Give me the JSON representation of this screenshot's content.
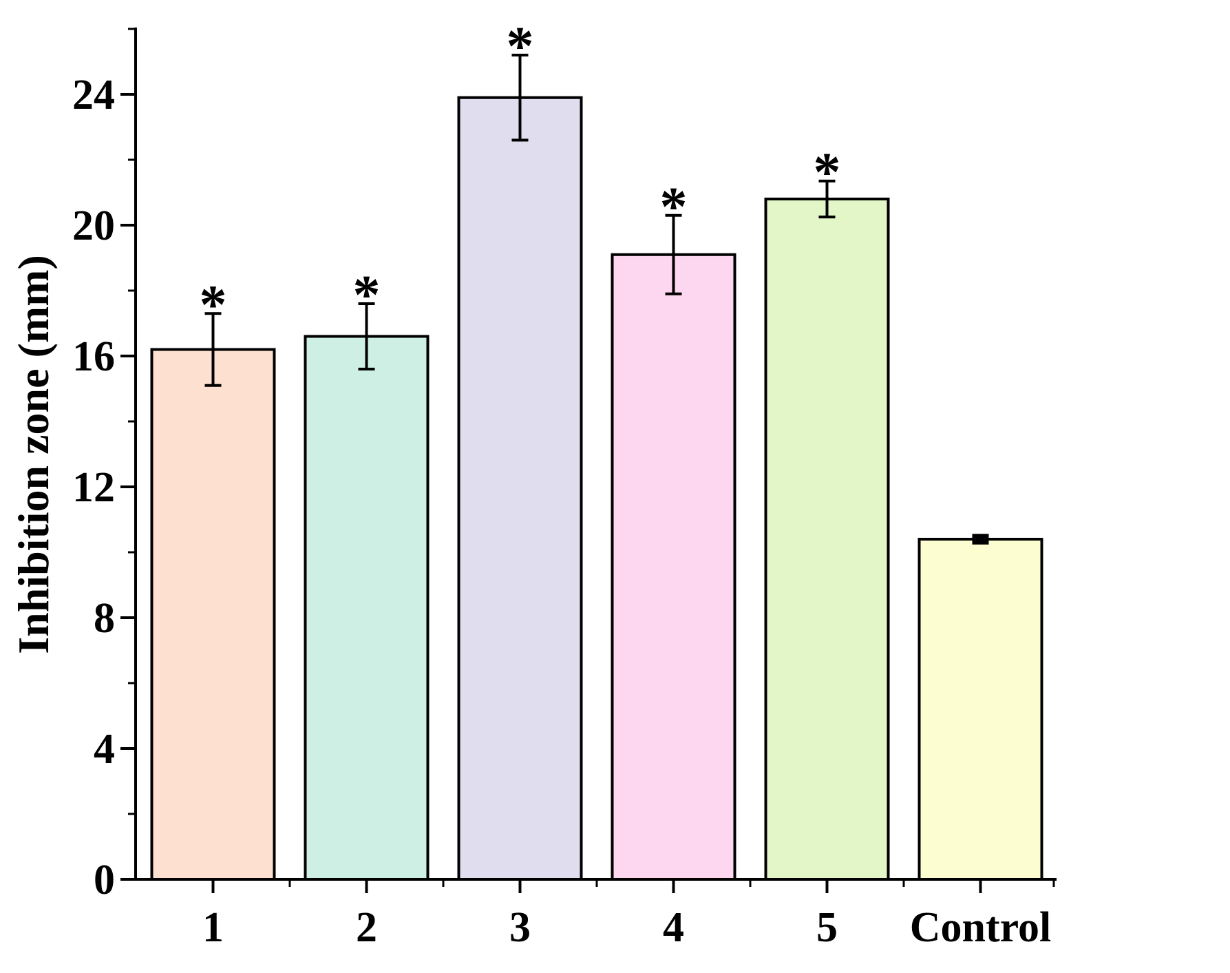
{
  "chart_data": {
    "type": "bar",
    "title": "",
    "xlabel": "",
    "ylabel": "Inhibition zone (mm)",
    "categories": [
      "1",
      "2",
      "3",
      "4",
      "5",
      "Control"
    ],
    "values": [
      16.2,
      16.6,
      23.9,
      19.1,
      20.8,
      10.4
    ],
    "errors": [
      1.1,
      1.0,
      1.3,
      1.2,
      0.55,
      0.1
    ],
    "significance": [
      "*",
      "*",
      "*",
      "*",
      "*",
      ""
    ],
    "colors": [
      "#fde0d0",
      "#cdefe4",
      "#e0ddee",
      "#fdd6ef",
      "#e2f6c8",
      "#fdfdd2"
    ],
    "ylim": [
      0,
      26
    ],
    "yticks": [
      0,
      4,
      8,
      12,
      16,
      20,
      24
    ],
    "grid": false,
    "legend": "none"
  }
}
